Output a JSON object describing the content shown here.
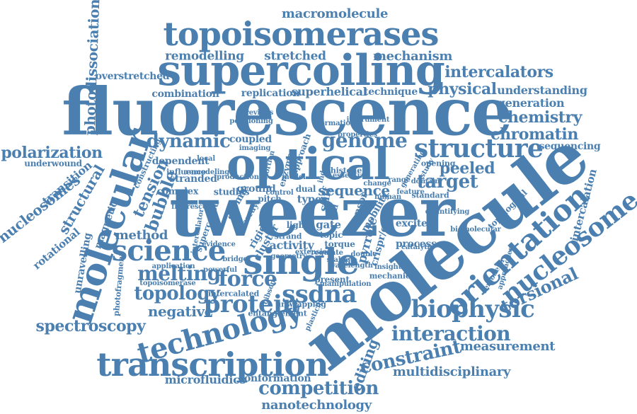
{
  "word_cloud": {
    "color": "#4a7fb0",
    "words": [
      "fluorescence",
      "molecule",
      "tweezer",
      "optical",
      "supercoiling",
      "topoisomerases",
      "single",
      "molecular",
      "transcription",
      "orientation",
      "nucleosome",
      "technology",
      "structure",
      "science",
      "biophysic",
      "protein",
      "ssdna",
      "force",
      "melting",
      "topology",
      "spectroscopy",
      "interaction",
      "constraint",
      "competition",
      "genome",
      "dynamic",
      "target",
      "peeled",
      "chromatin",
      "chemistry",
      "polarization",
      "photodissociation",
      "nucleosomes",
      "structural",
      "tension",
      "bubble",
      "method",
      "torsional",
      "intercalators",
      "physical",
      "macromolecule",
      "mechanism",
      "remodelling",
      "stretched",
      "measurement",
      "multidisciplinary",
      "nanotechnology",
      "microfluidics",
      "conformation",
      "sequence",
      "negative",
      "editing",
      "understanding",
      "generation",
      "sequencing",
      "overstretched",
      "combination",
      "replication",
      "superhelical",
      "technique",
      "underwound",
      "transition",
      "rotational",
      "magnetic",
      "unravelling",
      "photofragment",
      "intercalation",
      "topological",
      "activity",
      "pyrrole",
      "crispr/cas",
      "processes",
      "excited",
      "torque",
      "gate",
      "light",
      "types",
      "ground",
      "stranded",
      "influence",
      "complex",
      "studies",
      "application",
      "intercalated",
      "topoisomerase",
      "entanglement",
      "dependent",
      "constructing",
      "positioning",
      "coupled",
      "imaging",
      "histone",
      "dual",
      "approach",
      "quantifying",
      "biomolecular",
      "approaches",
      "remodeler",
      "catalytic",
      "plasticity",
      "unwrapping",
      "present",
      "manipulation",
      "mechanical",
      "cluster",
      "rigidity",
      "atomic",
      "array",
      "sensor",
      "mobility",
      "standard",
      "feature",
      "human",
      "stiff",
      "cell",
      "twist",
      "strand",
      "topic",
      "pitch",
      "control",
      "local",
      "remodeling",
      "intercalator",
      "supercoiled",
      "evidence",
      "gibson",
      "distortion",
      "enzyme",
      "induce",
      "essential",
      "study",
      "opening",
      "generating",
      "properties",
      "formation",
      "instrument",
      "wavelength",
      "regulate",
      "extension",
      "previous",
      "bridge",
      "geometry",
      "powerful",
      "fluorescent",
      "production",
      "model",
      "change",
      "range",
      "domain",
      "double",
      "stable",
      "insight",
      "binding",
      "nature"
    ]
  }
}
